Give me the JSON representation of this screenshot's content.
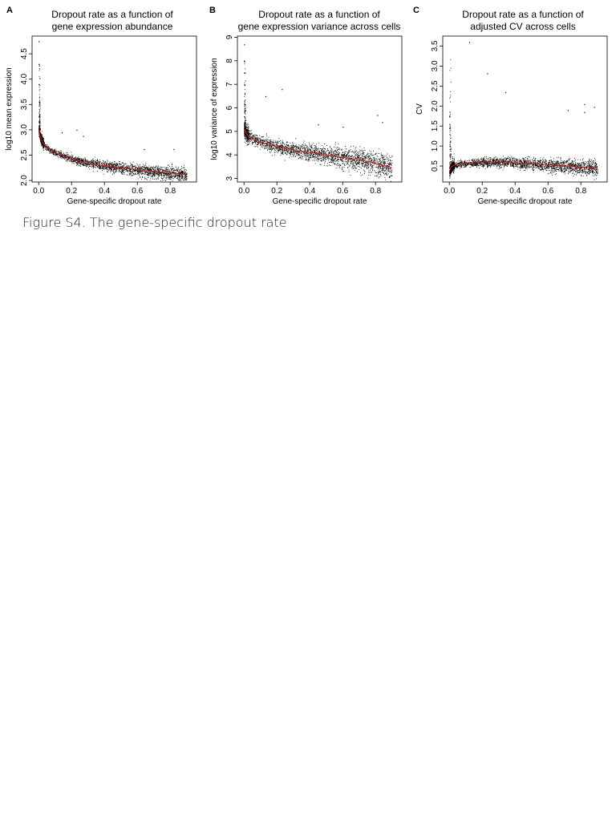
{
  "figure_caption": "Figure S4. The gene-specific dropout rate",
  "chart_data": [
    {
      "panel_label": "A",
      "type": "scatter",
      "title_line1": "Dropout rate as a function of",
      "title_line2": "gene expression abundance",
      "xlabel": "Gene-specific dropout rate",
      "ylabel": "log10 mean expression",
      "xlim": [
        -0.04,
        0.96
      ],
      "ylim": [
        1.97,
        4.85
      ],
      "xticks": [
        0.0,
        0.2,
        0.4,
        0.6,
        0.8
      ],
      "xtick_labels": [
        "0.0",
        "0.2",
        "0.4",
        "0.6",
        "0.8"
      ],
      "yticks": [
        2.0,
        2.5,
        3.0,
        3.5,
        4.0,
        4.5
      ],
      "ytick_labels": [
        "2.0",
        "2.5",
        "3.0",
        "3.5",
        "4.0",
        "4.5"
      ],
      "point_color": "#000000",
      "fit_color": "#e41a1c",
      "fit_curve": {
        "x": [
          0.0,
          0.01,
          0.03,
          0.05,
          0.1,
          0.2,
          0.3,
          0.4,
          0.5,
          0.6,
          0.7,
          0.8,
          0.9
        ],
        "y": [
          3.0,
          2.85,
          2.72,
          2.65,
          2.55,
          2.42,
          2.34,
          2.29,
          2.25,
          2.21,
          2.18,
          2.15,
          2.11
        ]
      },
      "approx_spread": 0.05,
      "notable_outliers": {
        "x": [
          0.0,
          0.0,
          0.0,
          0.23,
          0.27,
          0.64,
          0.82,
          0.14
        ],
        "y": [
          4.75,
          4.3,
          3.9,
          3.0,
          2.88,
          2.62,
          2.62,
          2.95
        ]
      }
    },
    {
      "panel_label": "B",
      "type": "scatter",
      "title_line1": "Dropout rate as a function of",
      "title_line2": "gene expression variance across cells",
      "xlabel": "Gene-specific dropout rate",
      "ylabel": "log10 variance of expression",
      "xlim": [
        -0.04,
        0.96
      ],
      "ylim": [
        2.85,
        9.05
      ],
      "xticks": [
        0.0,
        0.2,
        0.4,
        0.6,
        0.8
      ],
      "xtick_labels": [
        "0.0",
        "0.2",
        "0.4",
        "0.6",
        "0.8"
      ],
      "yticks": [
        3,
        4,
        5,
        6,
        7,
        8,
        9
      ],
      "ytick_labels": [
        "3",
        "4",
        "5",
        "6",
        "7",
        "8",
        "9"
      ],
      "point_color": "#000000",
      "fit_color": "#e41a1c",
      "fit_curve": {
        "x": [
          0.0,
          0.02,
          0.05,
          0.1,
          0.2,
          0.3,
          0.4,
          0.5,
          0.6,
          0.7,
          0.8,
          0.9
        ],
        "y": [
          5.1,
          4.85,
          4.7,
          4.55,
          4.35,
          4.2,
          4.1,
          4.0,
          3.9,
          3.8,
          3.65,
          3.45
        ]
      },
      "approx_spread": 0.18,
      "notable_outliers": {
        "x": [
          0.0,
          0.0,
          0.0,
          0.23,
          0.13,
          0.81,
          0.84,
          0.45,
          0.6
        ],
        "y": [
          8.7,
          8.0,
          7.5,
          6.8,
          6.5,
          5.7,
          5.4,
          5.3,
          5.2
        ]
      }
    },
    {
      "panel_label": "C",
      "type": "scatter",
      "title_line1": "Dropout rate as a function of",
      "title_line2": "adjusted CV across cells",
      "xlabel": "Gene-specific dropout rate",
      "ylabel": "CV",
      "xlim": [
        -0.04,
        0.96
      ],
      "ylim": [
        0.1,
        3.75
      ],
      "xticks": [
        0.0,
        0.2,
        0.4,
        0.6,
        0.8
      ],
      "xtick_labels": [
        "0.0",
        "0.2",
        "0.4",
        "0.6",
        "0.8"
      ],
      "yticks": [
        0.5,
        1.0,
        1.5,
        2.0,
        2.5,
        3.0,
        3.5
      ],
      "ytick_labels": [
        "0.5",
        "1.0",
        "1.5",
        "2.0",
        "2.5",
        "3.0",
        "3.5"
      ],
      "point_color": "#000000",
      "fit_color": "#e41a1c",
      "fit_curve": {
        "x": [
          0.0,
          0.01,
          0.03,
          0.05,
          0.1,
          0.2,
          0.3,
          0.4,
          0.5,
          0.6,
          0.7,
          0.8,
          0.9
        ],
        "y": [
          0.35,
          0.48,
          0.52,
          0.55,
          0.57,
          0.6,
          0.6,
          0.58,
          0.56,
          0.53,
          0.5,
          0.47,
          0.43
        ]
      },
      "approx_spread": 0.07,
      "notable_outliers": {
        "x": [
          0.12,
          0.23,
          0.34,
          0.82,
          0.82,
          0.88,
          0.72,
          0.0,
          0.0
        ],
        "y": [
          3.6,
          2.82,
          2.35,
          2.05,
          1.85,
          1.98,
          1.9,
          1.75,
          1.45
        ]
      }
    }
  ]
}
